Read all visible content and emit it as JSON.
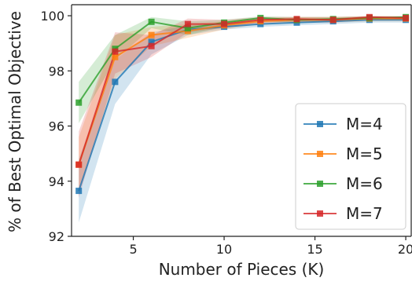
{
  "chart_data": {
    "type": "line",
    "xlabel": "Number of Pieces (K)",
    "ylabel": "% of Best Optimal Objective",
    "xlim": [
      1.6,
      20.3
    ],
    "ylim": [
      92,
      100.4
    ],
    "x_ticks": [
      5,
      10,
      15,
      20
    ],
    "y_ticks": [
      92,
      94,
      96,
      98,
      100
    ],
    "x": [
      2,
      4,
      6,
      8,
      10,
      12,
      14,
      16,
      18,
      20
    ],
    "legend_position": "lower-right",
    "grid": false,
    "series": [
      {
        "name": "M=4",
        "color": "#1f77b4",
        "values": [
          93.65,
          97.6,
          99.05,
          99.5,
          99.6,
          99.7,
          99.75,
          99.8,
          99.85,
          99.85
        ],
        "band_lower": [
          92.5,
          96.8,
          98.6,
          99.3,
          99.5,
          99.6,
          99.65,
          99.7,
          99.75,
          99.75
        ],
        "band_upper": [
          94.8,
          98.4,
          99.4,
          99.65,
          99.7,
          99.8,
          99.85,
          99.9,
          99.9,
          99.9
        ]
      },
      {
        "name": "M=5",
        "color": "#ff7f0e",
        "values": [
          94.6,
          98.5,
          99.3,
          99.45,
          99.65,
          99.8,
          99.85,
          99.85,
          99.9,
          99.9
        ],
        "band_lower": [
          93.6,
          97.7,
          98.9,
          99.2,
          99.5,
          99.7,
          99.75,
          99.75,
          99.8,
          99.8
        ],
        "band_upper": [
          95.6,
          99.3,
          99.6,
          99.7,
          99.8,
          99.9,
          99.95,
          99.95,
          99.98,
          99.98
        ]
      },
      {
        "name": "M=6",
        "color": "#2ca02c",
        "values": [
          96.85,
          98.8,
          99.78,
          99.55,
          99.75,
          99.92,
          99.85,
          99.88,
          99.92,
          99.95
        ],
        "band_lower": [
          96.1,
          98.4,
          99.55,
          99.3,
          99.6,
          99.8,
          99.75,
          99.78,
          99.85,
          99.85
        ],
        "band_upper": [
          97.6,
          99.3,
          99.95,
          99.8,
          99.85,
          99.98,
          99.95,
          99.96,
          99.98,
          99.99
        ]
      },
      {
        "name": "M=7",
        "color": "#d62728",
        "values": [
          94.6,
          98.7,
          98.9,
          99.7,
          99.7,
          99.85,
          99.88,
          99.85,
          99.95,
          99.92
        ],
        "band_lower": [
          93.4,
          97.9,
          98.5,
          99.4,
          99.55,
          99.75,
          99.78,
          99.75,
          99.88,
          99.85
        ],
        "band_upper": [
          95.8,
          99.4,
          99.3,
          99.9,
          99.85,
          99.95,
          99.96,
          99.95,
          99.99,
          99.98
        ]
      }
    ]
  }
}
